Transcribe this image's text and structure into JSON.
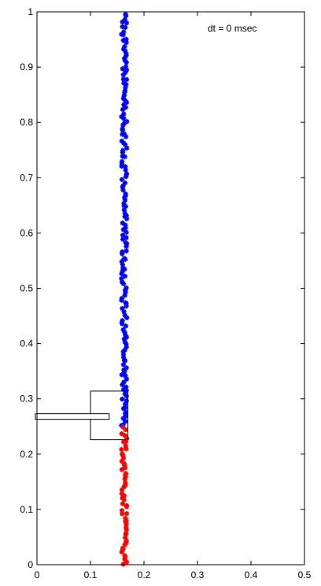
{
  "chart_data": {
    "type": "scatter",
    "title": "",
    "xlabel": "",
    "ylabel": "",
    "xlim": [
      0,
      0.5
    ],
    "ylim": [
      0,
      1
    ],
    "x_ticks": [
      "0",
      "0.1",
      "0.2",
      "0.3",
      "0.4",
      "0.5"
    ],
    "y_ticks": [
      "0",
      "0.1",
      "0.2",
      "0.3",
      "0.4",
      "0.5",
      "0.6",
      "0.7",
      "0.8",
      "0.9",
      "1"
    ],
    "grid": false,
    "legend": "none",
    "annotation": "dt = 0 msec",
    "series": [
      {
        "color": "#0000ff",
        "x_center": 0.163,
        "x_jitter": 0.005,
        "y_range": [
          0.25,
          1.0
        ],
        "marker": "star"
      },
      {
        "color": "#ff0000",
        "x_center": 0.163,
        "x_jitter": 0.005,
        "y_range": [
          0.0,
          0.25
        ],
        "marker": "star"
      }
    ],
    "shapes": [
      {
        "type": "rect",
        "x0": 0.1,
        "x1": 0.17,
        "y0": 0.226,
        "y1": 0.314
      },
      {
        "type": "rect",
        "x0": -0.05,
        "x1": 0.135,
        "y0": 0.263,
        "y1": 0.273
      }
    ]
  }
}
